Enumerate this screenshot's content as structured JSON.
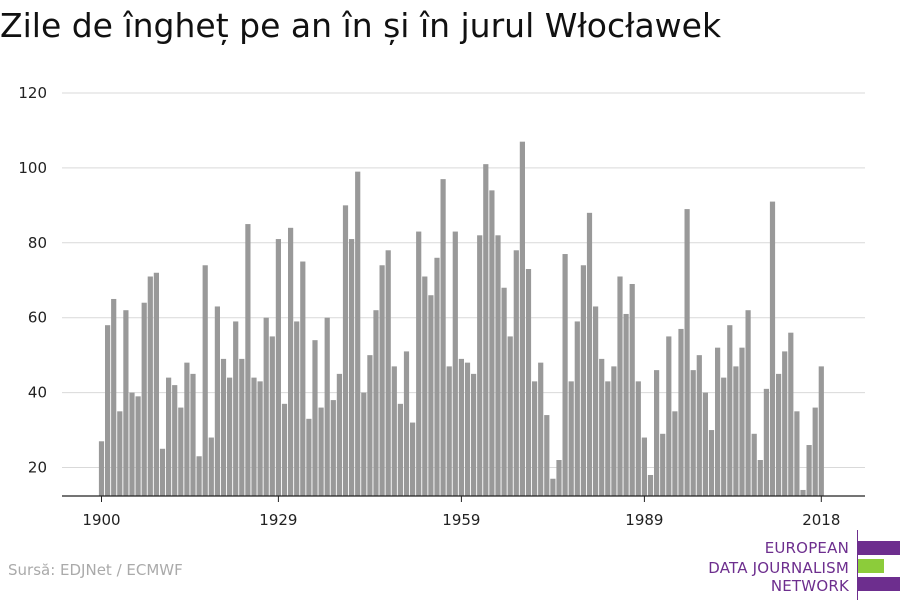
{
  "title": "Zile de îngheț pe an în și în jurul Włocławek",
  "source": "Sursă: EDJNet / ECMWF",
  "logo": {
    "lines": [
      "EUROPEAN",
      "DATA JOURNALISM",
      "NETWORK"
    ],
    "colors": {
      "purple": "#6d2e8e",
      "green": "#8ccc3a"
    }
  },
  "chart_data": {
    "type": "bar",
    "title": "Zile de îngheț pe an în și în jurul Włocławek",
    "xlabel": "",
    "ylabel": "",
    "ylim": [
      12,
      120
    ],
    "yticks": [
      20,
      40,
      60,
      80,
      100,
      120
    ],
    "xticks": [
      1900,
      1929,
      1959,
      1989,
      2018
    ],
    "grid": true,
    "bar_color": "#999999",
    "x": [
      1900,
      1901,
      1902,
      1903,
      1904,
      1905,
      1906,
      1907,
      1908,
      1909,
      1910,
      1911,
      1912,
      1913,
      1914,
      1915,
      1916,
      1917,
      1918,
      1919,
      1920,
      1921,
      1922,
      1923,
      1924,
      1925,
      1926,
      1927,
      1928,
      1929,
      1930,
      1931,
      1932,
      1933,
      1934,
      1935,
      1936,
      1937,
      1938,
      1939,
      1940,
      1941,
      1942,
      1943,
      1944,
      1945,
      1946,
      1947,
      1948,
      1949,
      1950,
      1951,
      1952,
      1953,
      1954,
      1955,
      1956,
      1957,
      1958,
      1959,
      1960,
      1961,
      1962,
      1963,
      1964,
      1965,
      1966,
      1967,
      1968,
      1969,
      1970,
      1971,
      1972,
      1973,
      1974,
      1975,
      1976,
      1977,
      1978,
      1979,
      1980,
      1981,
      1982,
      1983,
      1984,
      1985,
      1986,
      1987,
      1988,
      1989,
      1990,
      1991,
      1992,
      1993,
      1994,
      1995,
      1996,
      1997,
      1998,
      1999,
      2000,
      2001,
      2002,
      2003,
      2004,
      2005,
      2006,
      2007,
      2008,
      2009,
      2010,
      2011,
      2012,
      2013,
      2014,
      2015,
      2016,
      2017,
      2018
    ],
    "values": [
      27,
      58,
      65,
      35,
      62,
      40,
      39,
      64,
      71,
      72,
      25,
      44,
      42,
      36,
      48,
      45,
      23,
      74,
      28,
      63,
      49,
      44,
      59,
      49,
      85,
      44,
      43,
      60,
      55,
      81,
      37,
      84,
      59,
      75,
      33,
      54,
      36,
      60,
      38,
      45,
      90,
      81,
      99,
      40,
      50,
      62,
      74,
      78,
      47,
      37,
      51,
      32,
      83,
      71,
      66,
      76,
      97,
      47,
      83,
      49,
      48,
      45,
      82,
      101,
      94,
      82,
      68,
      55,
      78,
      107,
      73,
      43,
      48,
      34,
      17,
      22,
      77,
      43,
      59,
      74,
      88,
      63,
      49,
      43,
      47,
      71,
      61,
      69,
      43,
      28,
      18,
      46,
      29,
      55,
      35,
      57,
      89,
      46,
      50,
      40,
      30,
      52,
      44,
      58,
      47,
      52,
      62,
      29,
      22,
      41,
      91,
      45,
      51,
      56,
      35,
      14,
      26,
      36,
      47
    ]
  }
}
